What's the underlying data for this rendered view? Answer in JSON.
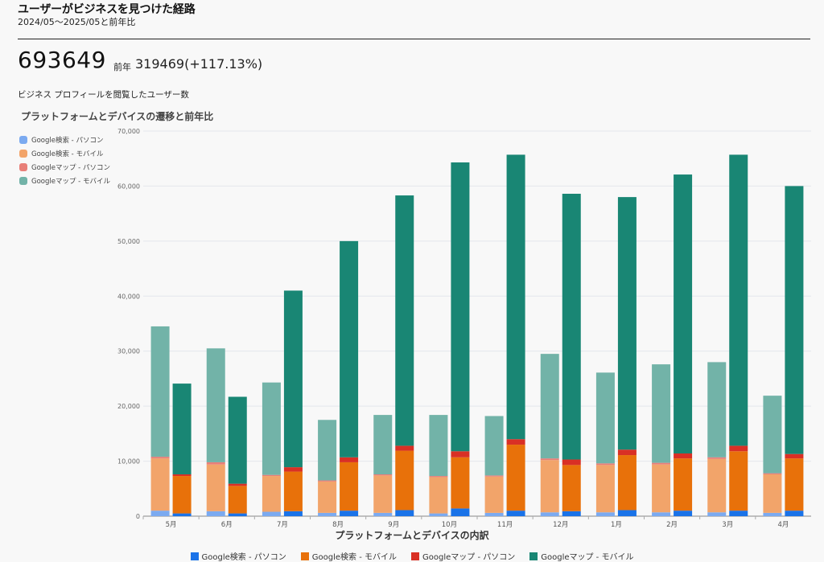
{
  "header": {
    "title": "ユーザーがビジネスを見つけた経路",
    "subtitle": "2024/05〜2025/05と前年比"
  },
  "summary": {
    "total": "693649",
    "prev_label": "前年",
    "prev_value": "319469(+117.13%)",
    "metric_label": "ビジネス プロフィールを閲覧したユーザー数"
  },
  "chart_data": {
    "type": "bar",
    "title": "プラットフォームとデバイスの遷移と前年比",
    "xlabel": "プラットフォームとデバイスの内訳",
    "ylabel": "",
    "ylim": [
      0,
      70000
    ],
    "yticks": [
      "0",
      "10,000",
      "20,000",
      "30,000",
      "40,000",
      "50,000",
      "60,000",
      "70,000"
    ],
    "categories": [
      "5月",
      "6月",
      "7月",
      "8月",
      "9月",
      "10月",
      "11月",
      "12月",
      "1月",
      "2月",
      "3月",
      "4月"
    ],
    "stacked": true,
    "grid": true,
    "legend_position": "top-left and bottom",
    "series_names": [
      "Google検索 - パソコン",
      "Google検索 - モバイル",
      "Googleマップ - パソコン",
      "Googleマップ - モバイル"
    ],
    "colors": [
      "#1a73e8",
      "#e8710a",
      "#d93025",
      "#198674"
    ],
    "previous_year": [
      [
        1000,
        9500,
        300,
        23700
      ],
      [
        900,
        8500,
        400,
        20700
      ],
      [
        800,
        6500,
        200,
        16800
      ],
      [
        600,
        5700,
        200,
        11000
      ],
      [
        600,
        6800,
        200,
        10800
      ],
      [
        500,
        6600,
        200,
        11100
      ],
      [
        600,
        6600,
        200,
        10800
      ],
      [
        700,
        9500,
        300,
        19000
      ],
      [
        700,
        8600,
        300,
        16500
      ],
      [
        700,
        8700,
        300,
        17900
      ],
      [
        700,
        9700,
        300,
        17300
      ],
      [
        600,
        7000,
        200,
        14100
      ]
    ],
    "current_year": [
      [
        500,
        6800,
        300,
        16500
      ],
      [
        500,
        5000,
        400,
        15800
      ],
      [
        900,
        7200,
        800,
        32100
      ],
      [
        1000,
        8800,
        900,
        39300
      ],
      [
        1100,
        10800,
        900,
        45500
      ],
      [
        1400,
        9300,
        1100,
        52500
      ],
      [
        1000,
        12000,
        1000,
        51700
      ],
      [
        900,
        8400,
        1000,
        48300
      ],
      [
        1100,
        10000,
        1000,
        45900
      ],
      [
        1000,
        9500,
        900,
        50700
      ],
      [
        1000,
        10800,
        1000,
        52900
      ],
      [
        1000,
        9500,
        800,
        48700
      ]
    ]
  }
}
